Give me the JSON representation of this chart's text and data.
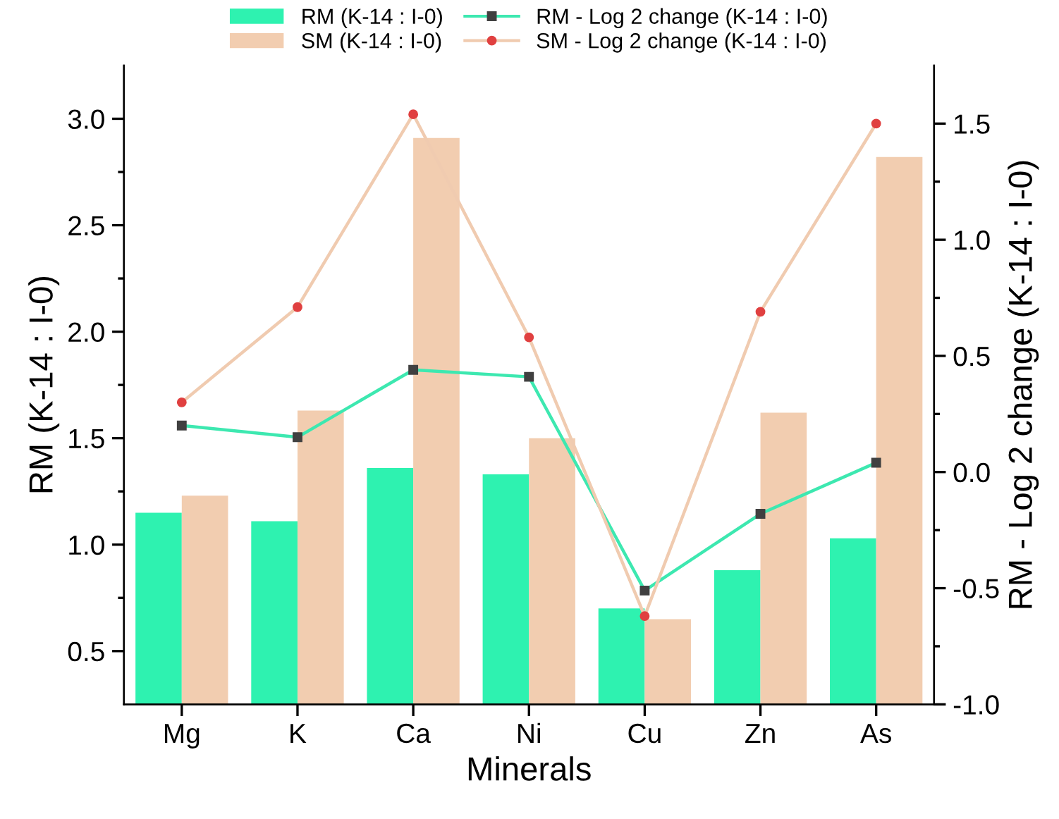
{
  "chart_data": {
    "type": "bar",
    "xlabel": "Minerals",
    "ylabel": "RM (K-14 : I-0)",
    "y2label": "RM - Log 2 change (K-14 : I-0)",
    "categories": [
      "Mg",
      "K",
      "Ca",
      "Ni",
      "Cu",
      "Zn",
      "As"
    ],
    "series": [
      {
        "name": "RM (K-14 : I-0)",
        "color": "#2ef2b0",
        "values": [
          1.15,
          1.11,
          1.36,
          1.33,
          0.7,
          0.88,
          1.03
        ]
      },
      {
        "name": "SM (K-14 : I-0)",
        "color": "#f2cdb0",
        "values": [
          1.23,
          1.63,
          2.91,
          1.5,
          0.65,
          1.62,
          2.82
        ]
      },
      {
        "name": "RM - Log 2 change (K-14 : I-0)",
        "type": "line",
        "axis": "y2",
        "marker": "square",
        "color": "#3de8b0",
        "values": [
          0.2,
          0.15,
          0.44,
          0.41,
          -0.51,
          -0.18,
          0.04
        ]
      },
      {
        "name": "SM - Log 2 change (K-14 : I-0)",
        "type": "line",
        "axis": "y2",
        "marker": "circle",
        "color": "#f0cbb0",
        "values": [
          0.3,
          0.71,
          1.54,
          0.58,
          -0.62,
          0.69,
          1.5
        ]
      }
    ],
    "ylim": [
      0.25,
      3.25
    ],
    "yticks": [
      {
        "value": 0.5,
        "label": "0.5"
      },
      {
        "value": 0.75,
        "label": null
      },
      {
        "value": 1.0,
        "label": "1.0"
      },
      {
        "value": 1.25,
        "label": null
      },
      {
        "value": 1.5,
        "label": "1.5"
      },
      {
        "value": 1.75,
        "label": null
      },
      {
        "value": 2.0,
        "label": "2.0"
      },
      {
        "value": 2.25,
        "label": null
      },
      {
        "value": 2.5,
        "label": "2.5"
      },
      {
        "value": 2.75,
        "label": null
      },
      {
        "value": 3.0,
        "label": "3.0"
      }
    ],
    "y2lim": [
      -1.0,
      1.75
    ],
    "y2ticks": [
      {
        "value": -1.0,
        "label": "-1.0"
      },
      {
        "value": -0.75,
        "label": null
      },
      {
        "value": -0.5,
        "label": "-0.5"
      },
      {
        "value": -0.25,
        "label": null
      },
      {
        "value": 0.0,
        "label": "0.0"
      },
      {
        "value": 0.25,
        "label": null
      },
      {
        "value": 0.5,
        "label": "0.5"
      },
      {
        "value": 0.75,
        "label": null
      },
      {
        "value": 1.0,
        "label": "1.0"
      },
      {
        "value": 1.25,
        "label": null
      },
      {
        "value": 1.5,
        "label": "1.5"
      }
    ],
    "legend": "top",
    "grid": false
  }
}
